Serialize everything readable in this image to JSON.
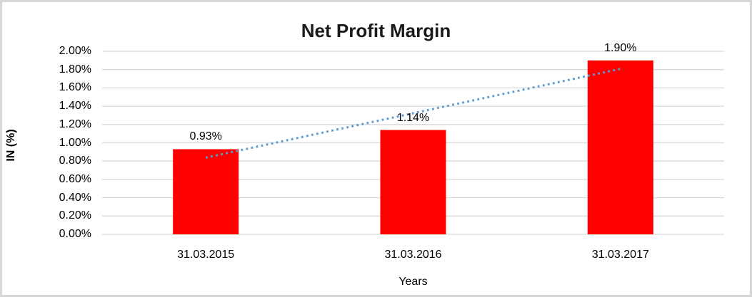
{
  "window": {
    "background_color": "#ffffff",
    "frame_border_color": "#d6d6d6"
  },
  "chart_data": {
    "type": "bar",
    "title": "Net Profit Margin",
    "xlabel": "Years",
    "ylabel": "IN (%)",
    "categories": [
      "31.03.2015",
      "31.03.2016",
      "31.03.2017"
    ],
    "values": [
      0.93,
      1.14,
      1.9
    ],
    "value_labels": [
      "0.93%",
      "1.14%",
      "1.90%"
    ],
    "ylim": [
      0,
      2
    ],
    "ytick_step": 0.2,
    "ytick_labels": [
      "0.00%",
      "0.20%",
      "0.40%",
      "0.60%",
      "0.80%",
      "1.00%",
      "1.20%",
      "1.40%",
      "1.60%",
      "1.80%",
      "2.00%"
    ],
    "grid": true,
    "legend_position": "none",
    "bar_color": "#ff0000",
    "gridline_color": "#d9d9d9",
    "text_color": "#000000",
    "trendline": {
      "type": "linear",
      "style": "dotted",
      "color": "#5b9bd5",
      "start_value": 0.838,
      "end_value": 1.808
    }
  }
}
